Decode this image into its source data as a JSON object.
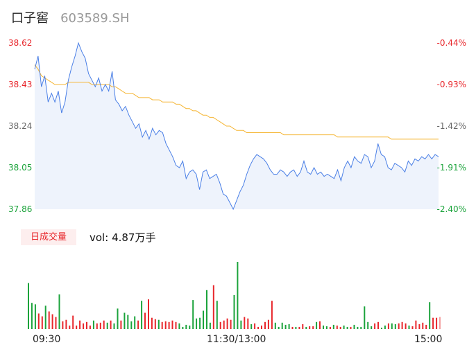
{
  "header": {
    "name": "口子窖",
    "code": "603589.SH"
  },
  "volume_panel": {
    "tag": "日成交量",
    "vol_prefix": "vol:",
    "vol_value": "4.87万手"
  },
  "colors": {
    "price_line": "#4a7fe6",
    "avg_line": "#f5b532",
    "area_fill": "#eef3fc",
    "up": "#e8262b",
    "down": "#1ba33b",
    "neutral": "#666666"
  },
  "chart_data": [
    {
      "type": "line",
      "title": "",
      "y_ticks": [
        {
          "price": "38.62",
          "pct": "-0.44%",
          "color": "up"
        },
        {
          "price": "38.43",
          "pct": "-0.93%",
          "color": "up"
        },
        {
          "price": "38.24",
          "pct": "-1.42%",
          "color": "neutral"
        },
        {
          "price": "38.05",
          "pct": "-1.91%",
          "color": "down"
        },
        {
          "price": "37.86",
          "pct": "-2.40%",
          "color": "down"
        }
      ],
      "ylim": [
        37.86,
        38.62
      ],
      "x_ticks": [
        "09:30",
        "11:30/13:00",
        "15:00"
      ],
      "series": [
        {
          "key": "price",
          "values": [
            38.5,
            38.56,
            38.42,
            38.47,
            38.35,
            38.39,
            38.35,
            38.4,
            38.3,
            38.35,
            38.45,
            38.51,
            38.56,
            38.62,
            38.58,
            38.55,
            38.48,
            38.45,
            38.42,
            38.46,
            38.4,
            38.43,
            38.4,
            38.49,
            38.36,
            38.34,
            38.31,
            38.33,
            38.29,
            38.26,
            38.23,
            38.25,
            38.19,
            38.22,
            38.18,
            38.23,
            38.2,
            38.22,
            38.21,
            38.16,
            38.13,
            38.1,
            38.06,
            38.05,
            38.08,
            38.0,
            38.03,
            38.04,
            38.02,
            37.95,
            38.03,
            38.04,
            38.0,
            38.01,
            38.02,
            37.98,
            37.93,
            37.92,
            37.89,
            37.86,
            37.9,
            37.94,
            37.97,
            38.02,
            38.06,
            38.09,
            38.11,
            38.1,
            38.09,
            38.07,
            38.04,
            38.02,
            38.02,
            38.04,
            38.03,
            38.01,
            38.03,
            38.04,
            38.01,
            38.03,
            38.08,
            38.03,
            38.02,
            38.05,
            38.02,
            38.03,
            38.01,
            38.02,
            38.01,
            38.0,
            38.04,
            37.99,
            38.05,
            38.08,
            38.05,
            38.1,
            38.08,
            38.07,
            38.11,
            38.1,
            38.05,
            38.08,
            38.16,
            38.11,
            38.1,
            38.05,
            38.04,
            38.07,
            38.06,
            38.05,
            38.03,
            38.08,
            38.06,
            38.09,
            38.08,
            38.1,
            38.09,
            38.11,
            38.09,
            38.11,
            38.1
          ]
        },
        {
          "key": "avg",
          "values": [
            38.52,
            38.5,
            38.47,
            38.46,
            38.45,
            38.44,
            38.43,
            38.43,
            38.43,
            38.43,
            38.44,
            38.44,
            38.44,
            38.44,
            38.44,
            38.44,
            38.44,
            38.43,
            38.43,
            38.43,
            38.43,
            38.43,
            38.43,
            38.42,
            38.42,
            38.41,
            38.4,
            38.39,
            38.39,
            38.39,
            38.38,
            38.37,
            38.37,
            38.37,
            38.37,
            38.36,
            38.36,
            38.36,
            38.35,
            38.35,
            38.35,
            38.35,
            38.34,
            38.34,
            38.33,
            38.32,
            38.32,
            38.31,
            38.31,
            38.3,
            38.29,
            38.29,
            38.28,
            38.28,
            38.27,
            38.26,
            38.25,
            38.24,
            38.24,
            38.23,
            38.22,
            38.22,
            38.22,
            38.21,
            38.21,
            38.21,
            38.21,
            38.21,
            38.21,
            38.21,
            38.21,
            38.21,
            38.21,
            38.21,
            38.2,
            38.2,
            38.2,
            38.2,
            38.2,
            38.2,
            38.2,
            38.2,
            38.2,
            38.2,
            38.2,
            38.2,
            38.2,
            38.2,
            38.2,
            38.2,
            38.19,
            38.19,
            38.19,
            38.19,
            38.19,
            38.19,
            38.19,
            38.19,
            38.19,
            38.19,
            38.19,
            38.19,
            38.19,
            38.19,
            38.19,
            38.19,
            38.18,
            38.18,
            38.18,
            38.18,
            38.18,
            38.18,
            38.18,
            38.18,
            38.18,
            38.18,
            38.18,
            38.18,
            38.18,
            38.18,
            38.18
          ]
        }
      ]
    },
    {
      "type": "bar",
      "title": "",
      "series": [
        {
          "key": "volume",
          "values": [
            65,
            37,
            35,
            22,
            18,
            33,
            25,
            21,
            17,
            49,
            11,
            13,
            5,
            19,
            5,
            12,
            8,
            10,
            5,
            12,
            8,
            9,
            12,
            9,
            12,
            8,
            29,
            12,
            23,
            20,
            11,
            18,
            12,
            40,
            23,
            42,
            16,
            14,
            13,
            10,
            11,
            10,
            12,
            10,
            8,
            3,
            6,
            5,
            41,
            15,
            16,
            26,
            55,
            9,
            62,
            40,
            10,
            12,
            15,
            13,
            48,
            95,
            12,
            17,
            15,
            7,
            8,
            3,
            5,
            10,
            13,
            40,
            9,
            3,
            9,
            6,
            7,
            3,
            3,
            3,
            7,
            3,
            4,
            4,
            10,
            11,
            5,
            4,
            3,
            6,
            5,
            3,
            5,
            3,
            3,
            6,
            3,
            3,
            32,
            10,
            4,
            8,
            10,
            2,
            5,
            8,
            8,
            7,
            8,
            10,
            8,
            5,
            4,
            12,
            7,
            9,
            6,
            38,
            16,
            16,
            17
          ],
          "colors": [
            "down",
            "down",
            "down",
            "up",
            "up",
            "down",
            "up",
            "up",
            "up",
            "down",
            "up",
            "up",
            "up",
            "up",
            "up",
            "up",
            "up",
            "up",
            "up",
            "down",
            "up",
            "up",
            "up",
            "down",
            "up",
            "down",
            "down",
            "up",
            "down",
            "down",
            "down",
            "down",
            "up",
            "down",
            "up",
            "up",
            "up",
            "up",
            "down",
            "up",
            "up",
            "up",
            "up",
            "up",
            "down",
            "down",
            "down",
            "down",
            "down",
            "down",
            "down",
            "down",
            "down",
            "down",
            "up",
            "down",
            "up",
            "up",
            "up",
            "up",
            "down",
            "down",
            "down",
            "up",
            "up",
            "down",
            "up",
            "up",
            "up",
            "up",
            "up",
            "up",
            "down",
            "down",
            "down",
            "down",
            "down",
            "up",
            "down",
            "up",
            "up",
            "down",
            "up",
            "up",
            "down",
            "up",
            "down",
            "down",
            "up",
            "down",
            "up",
            "up",
            "down",
            "down",
            "up",
            "down",
            "down",
            "down",
            "down",
            "down",
            "down",
            "up",
            "up",
            "down",
            "down",
            "up",
            "down",
            "down",
            "up",
            "up",
            "up",
            "down",
            "up",
            "up",
            "up",
            "up",
            "up",
            "down",
            "up",
            "up",
            "neutral"
          ]
        }
      ]
    }
  ]
}
